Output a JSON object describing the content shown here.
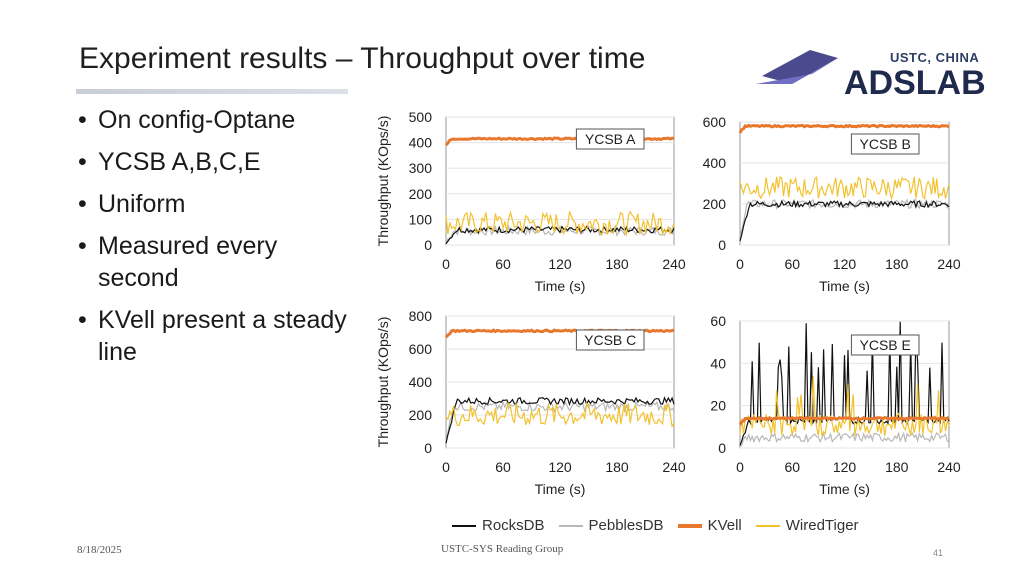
{
  "slide": {
    "title": "Experiment results – Throughput over time",
    "bullets": [
      "On config-Optane",
      "YCSB A,B,C,E",
      "Uniform",
      "Measured every second",
      "KVell present a steady line"
    ],
    "logo_text": "USTC, CHINA",
    "footer_date": "8/18/2025",
    "footer_center": "USTC-SYS Reading Group",
    "page_number": "41"
  },
  "chart_data": [
    {
      "type": "line",
      "title": "YCSB A",
      "xlabel": "Time (s)",
      "ylabel": "Throughput (KOps/s)",
      "xlim": [
        0,
        240
      ],
      "ylim": [
        0,
        500
      ],
      "xticks": [
        0,
        60,
        120,
        180,
        240
      ],
      "yticks": [
        0,
        100,
        200,
        300,
        400,
        500
      ],
      "series": [
        {
          "name": "RocksDB",
          "level": 60
        },
        {
          "name": "PebblesDB",
          "level": 55
        },
        {
          "name": "KVell",
          "level": 415
        },
        {
          "name": "WiredTiger",
          "level": 85
        }
      ]
    },
    {
      "type": "line",
      "title": "YCSB B",
      "xlabel": "Time (s)",
      "ylabel": "",
      "xlim": [
        0,
        240
      ],
      "ylim": [
        0,
        600
      ],
      "xticks": [
        0,
        60,
        120,
        180,
        240
      ],
      "yticks": [
        0,
        200,
        400,
        600
      ],
      "series": [
        {
          "name": "RocksDB",
          "level": 200
        },
        {
          "name": "PebblesDB",
          "level": 200
        },
        {
          "name": "KVell",
          "level": 580
        },
        {
          "name": "WiredTiger",
          "level": 280
        }
      ]
    },
    {
      "type": "line",
      "title": "YCSB C",
      "xlabel": "Time (s)",
      "ylabel": "Throughput (KOps/s)",
      "xlim": [
        0,
        240
      ],
      "ylim": [
        0,
        800
      ],
      "xticks": [
        0,
        60,
        120,
        180,
        240
      ],
      "yticks": [
        0,
        200,
        400,
        600,
        800
      ],
      "series": [
        {
          "name": "RocksDB",
          "level": 285
        },
        {
          "name": "PebblesDB",
          "level": 250
        },
        {
          "name": "KVell",
          "level": 710
        },
        {
          "name": "WiredTiger",
          "level": 200
        }
      ]
    },
    {
      "type": "line",
      "title": "YCSB E",
      "xlabel": "Time (s)",
      "ylabel": "",
      "xlim": [
        0,
        240
      ],
      "ylim": [
        0,
        60
      ],
      "xticks": [
        0,
        60,
        120,
        180,
        240
      ],
      "yticks": [
        0,
        20,
        40,
        60
      ],
      "series": [
        {
          "name": "RocksDB",
          "level": 13
        },
        {
          "name": "PebblesDB",
          "level": 5
        },
        {
          "name": "KVell",
          "level": 14
        },
        {
          "name": "WiredTiger",
          "level": 11
        }
      ]
    }
  ],
  "legend": [
    {
      "name": "RocksDB",
      "color": "#111111"
    },
    {
      "name": "PebblesDB",
      "color": "#b8b8b8"
    },
    {
      "name": "KVell",
      "color": "#e8782e"
    },
    {
      "name": "WiredTiger",
      "color": "#f2c230"
    }
  ]
}
